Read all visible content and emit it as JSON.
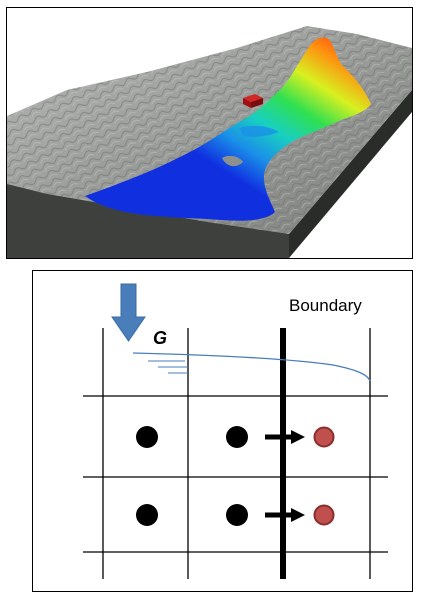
{
  "terrain_figure": {
    "water_colors": [
      "#1030e0",
      "#1a90e8",
      "#18d0c0",
      "#30e050",
      "#d8f020",
      "#ff9010",
      "#ff2010"
    ],
    "terrain_color": "#9a9c9a",
    "marker_color": "#b01818"
  },
  "grid_figure": {
    "boundary_label": "Boundary",
    "gravity_label": "G",
    "arrow_color": "#4a7ebb",
    "cell_dot_color": "#000000",
    "ghost_dot_color": "#c0504d",
    "surface_line_color": "#4a7ebb"
  }
}
